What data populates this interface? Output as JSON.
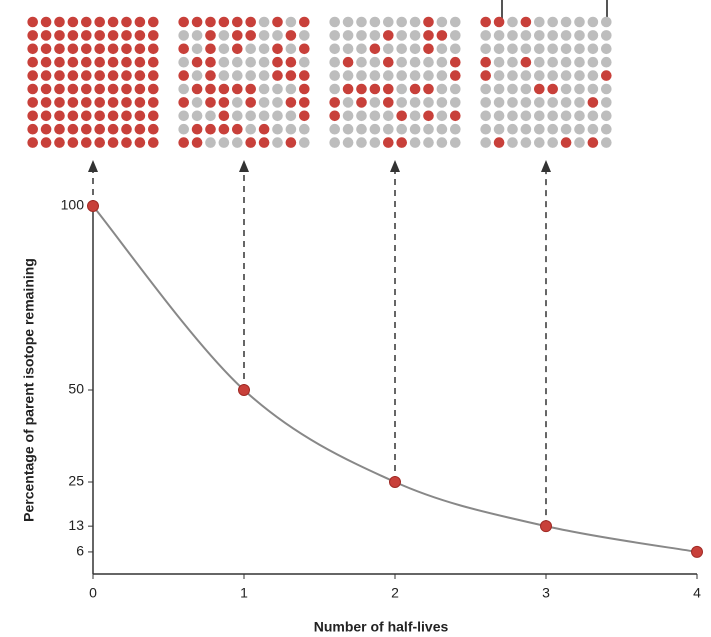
{
  "chart_data": {
    "type": "line",
    "x_label": "Number of half-lives",
    "y_label": "Percentage of parent isotope remaining",
    "x": [
      0,
      1,
      2,
      3,
      4
    ],
    "values": [
      100,
      50,
      25,
      13,
      6
    ],
    "color": "#c8403a",
    "xlim": [
      0,
      4
    ],
    "xticks": [
      0,
      1,
      2,
      3,
      4
    ],
    "ylim": [
      0,
      100
    ],
    "yticks": [
      6,
      13,
      25,
      50,
      100
    ]
  }
}
